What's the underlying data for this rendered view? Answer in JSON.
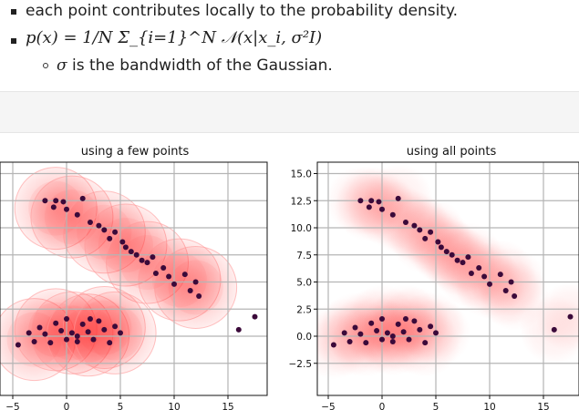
{
  "notes": {
    "line1": "each point contributes locally to the probability density.",
    "formula": "p(x) = 1/N Σ_{i=1}^N 𝒩(x|x_i, σ²I)",
    "sub_sigma": "σ",
    "sub_text": " is the bandwidth of the Gaussian."
  },
  "colors": {
    "point": "#3b0a3a",
    "density": "#ff3b3b",
    "grid": "#b5b5b5"
  },
  "chart_data": [
    {
      "type": "scatter",
      "title": "using a few points",
      "xticks": [
        "−5",
        "0",
        "5",
        "10",
        "15"
      ],
      "xlim": [
        -5.5,
        18.5
      ],
      "ylim": [
        -3.5,
        16.5
      ],
      "grid": true,
      "points": [
        [
          -4.5,
          -0.8
        ],
        [
          -2,
          12.5
        ],
        [
          -1,
          12.5
        ],
        [
          -0.3,
          12.4
        ],
        [
          0,
          11.7
        ],
        [
          1,
          11.2
        ],
        [
          -1.2,
          11.9
        ],
        [
          1.5,
          12.7
        ],
        [
          2.2,
          10.5
        ],
        [
          3,
          10.2
        ],
        [
          3.5,
          9.8
        ],
        [
          4,
          9
        ],
        [
          4.5,
          9.6
        ],
        [
          5.2,
          8.7
        ],
        [
          5.5,
          8.2
        ],
        [
          6,
          7.8
        ],
        [
          6.5,
          7.5
        ],
        [
          7,
          7
        ],
        [
          7.5,
          6.8
        ],
        [
          8,
          7.3
        ],
        [
          8.3,
          5.8
        ],
        [
          9,
          6.3
        ],
        [
          9.5,
          5.5
        ],
        [
          10,
          4.8
        ],
        [
          11,
          5.7
        ],
        [
          11.5,
          4.2
        ],
        [
          12,
          5
        ],
        [
          12.3,
          3.7
        ],
        [
          -3,
          -0.5
        ],
        [
          -2.5,
          0.8
        ],
        [
          -2,
          0.2
        ],
        [
          -1.5,
          -0.6
        ],
        [
          -1,
          1.2
        ],
        [
          -0.5,
          0.5
        ],
        [
          0,
          -0.3
        ],
        [
          0,
          1.6
        ],
        [
          0.5,
          0.3
        ],
        [
          1,
          -0.5
        ],
        [
          1.5,
          1.1
        ],
        [
          2,
          0.4
        ],
        [
          2.5,
          -0.3
        ],
        [
          3,
          1.4
        ],
        [
          3.5,
          0.6
        ],
        [
          4,
          -0.6
        ],
        [
          4.5,
          0.9
        ],
        [
          5,
          0.3
        ],
        [
          -3.5,
          0.3
        ],
        [
          1,
          0
        ],
        [
          2.2,
          1.6
        ],
        [
          16,
          0.6
        ],
        [
          17.5,
          1.8
        ]
      ],
      "blobs": [
        [
          -1,
          11.8
        ],
        [
          0.5,
          11
        ],
        [
          3.5,
          9.6
        ],
        [
          5.5,
          8.4
        ],
        [
          7.5,
          6.8
        ],
        [
          10.5,
          5.2
        ],
        [
          12,
          4.5
        ],
        [
          -3,
          -0.3
        ],
        [
          -1,
          0.6
        ],
        [
          0.5,
          0.3
        ],
        [
          2,
          0.1
        ],
        [
          3.5,
          0.8
        ],
        [
          4.5,
          0.3
        ]
      ]
    },
    {
      "type": "scatter",
      "title": "using all points",
      "yticks": [
        "15.0",
        "12.5",
        "10.0",
        "7.5",
        "5.0",
        "2.5",
        "0.0",
        "−2.5"
      ],
      "xticks": [
        "−5",
        "0",
        "5",
        "10",
        "15"
      ],
      "xlim": [
        -5.5,
        18.5
      ],
      "ylim": [
        -3.5,
        16.5
      ],
      "grid": true,
      "points": [
        [
          -4.5,
          -0.8
        ],
        [
          -2,
          12.5
        ],
        [
          -1,
          12.5
        ],
        [
          -0.3,
          12.4
        ],
        [
          0,
          11.7
        ],
        [
          1,
          11.2
        ],
        [
          -1.2,
          11.9
        ],
        [
          1.5,
          12.7
        ],
        [
          2.2,
          10.5
        ],
        [
          3,
          10.2
        ],
        [
          3.5,
          9.8
        ],
        [
          4,
          9
        ],
        [
          4.5,
          9.6
        ],
        [
          5.2,
          8.7
        ],
        [
          5.5,
          8.2
        ],
        [
          6,
          7.8
        ],
        [
          6.5,
          7.5
        ],
        [
          7,
          7
        ],
        [
          7.5,
          6.8
        ],
        [
          8,
          7.3
        ],
        [
          8.3,
          5.8
        ],
        [
          9,
          6.3
        ],
        [
          9.5,
          5.5
        ],
        [
          10,
          4.8
        ],
        [
          11,
          5.7
        ],
        [
          11.5,
          4.2
        ],
        [
          12,
          5
        ],
        [
          12.3,
          3.7
        ],
        [
          -3,
          -0.5
        ],
        [
          -2.5,
          0.8
        ],
        [
          -2,
          0.2
        ],
        [
          -1.5,
          -0.6
        ],
        [
          -1,
          1.2
        ],
        [
          -0.5,
          0.5
        ],
        [
          0,
          -0.3
        ],
        [
          0,
          1.6
        ],
        [
          0.5,
          0.3
        ],
        [
          1,
          -0.5
        ],
        [
          1.5,
          1.1
        ],
        [
          2,
          0.4
        ],
        [
          2.5,
          -0.3
        ],
        [
          3,
          1.4
        ],
        [
          3.5,
          0.6
        ],
        [
          4,
          -0.6
        ],
        [
          4.5,
          0.9
        ],
        [
          5,
          0.3
        ],
        [
          -3.5,
          0.3
        ],
        [
          1,
          0
        ],
        [
          2.2,
          1.6
        ],
        [
          16,
          0.6
        ],
        [
          17.5,
          1.8
        ]
      ]
    }
  ]
}
